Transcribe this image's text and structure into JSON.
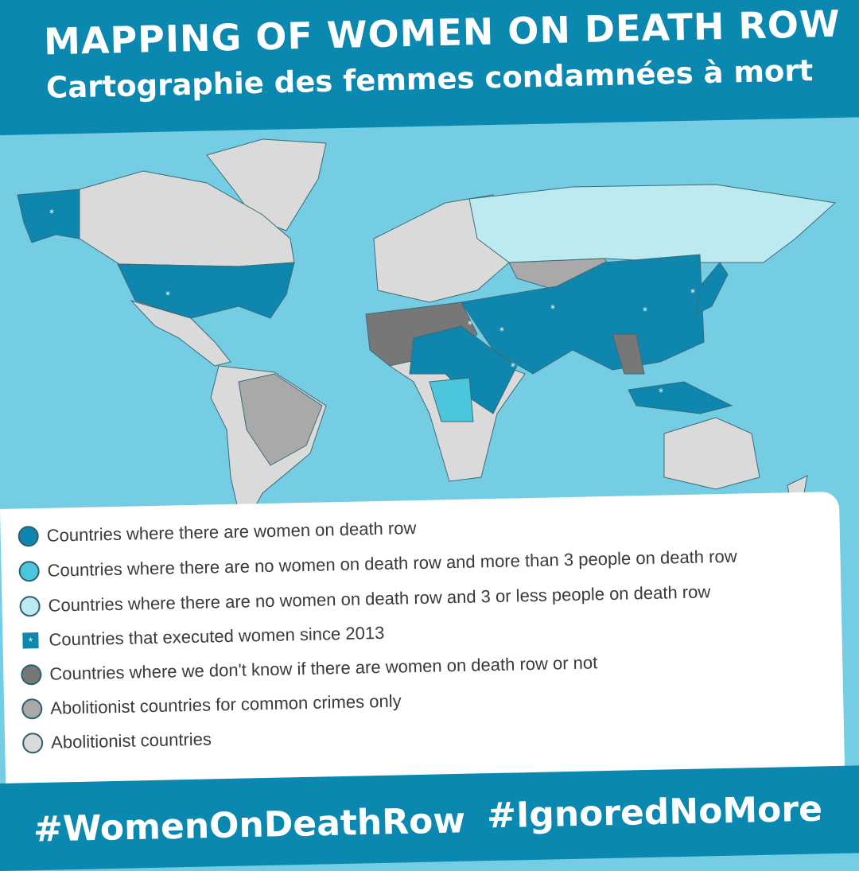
{
  "header": {
    "title": "MAPPING OF WOMEN ON DEATH ROW",
    "subtitle": "Cartographie des femmes condamnées à mort"
  },
  "colors": {
    "band": "#0b88b0",
    "ocean": "#74cde3",
    "women_on_death_row": "#0e86ad",
    "no_women_more_than_3": "#4cc6dd",
    "no_women_3_or_less": "#bde9f0",
    "unknown": "#777777",
    "abolitionist_common_crimes": "#a9a9a9",
    "abolitionist": "#dadada"
  },
  "legend": [
    {
      "label": "Countries where there are women on death row",
      "icon": "circle",
      "color": "#0e86ad"
    },
    {
      "label": "Countries where there are no women on death row and more than 3 people on death row",
      "icon": "circle",
      "color": "#4cc6dd"
    },
    {
      "label": "Countries where there are no women on death row and 3 or less people on death row",
      "icon": "circle",
      "color": "#bde9f0"
    },
    {
      "label": "Countries that executed women since 2013",
      "icon": "star-square",
      "symbol": "*",
      "color": "#0e86ad"
    },
    {
      "label": "Countries where we don't know if there are women on death row or not",
      "icon": "circle",
      "color": "#777777"
    },
    {
      "label": "Abolitionist countries for common crimes only",
      "icon": "circle",
      "color": "#a9a9a9"
    },
    {
      "label": "Abolitionist countries",
      "icon": "circle",
      "color": "#dadada"
    }
  ],
  "footer": {
    "hashtag1": "#WomenOnDeathRow",
    "hashtag2": "#IgnoredNoMore"
  }
}
